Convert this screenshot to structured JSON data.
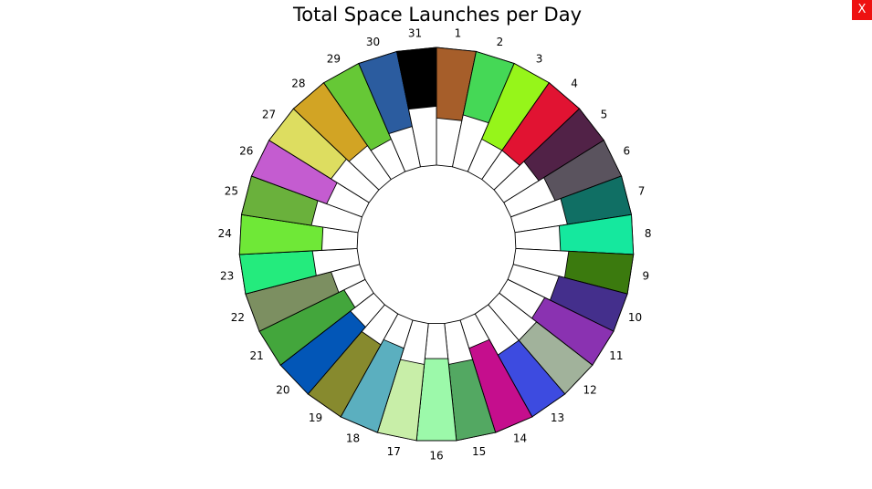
{
  "chart_data": {
    "type": "radial-bar",
    "title": "Total Space Launches per Day",
    "categories": [
      "1",
      "2",
      "3",
      "4",
      "5",
      "6",
      "7",
      "8",
      "9",
      "10",
      "11",
      "12",
      "13",
      "14",
      "15",
      "16",
      "17",
      "18",
      "19",
      "20",
      "21",
      "22",
      "23",
      "24",
      "25",
      "26",
      "27",
      "28",
      "29",
      "30",
      "31"
    ],
    "values": [
      0.6,
      0.55,
      0.7,
      0.7,
      0.65,
      0.6,
      0.55,
      0.62,
      0.55,
      0.6,
      0.65,
      0.6,
      0.6,
      0.75,
      0.65,
      0.7,
      0.65,
      0.75,
      0.7,
      0.75,
      0.8,
      0.75,
      0.62,
      0.7,
      0.6,
      0.68,
      0.62,
      0.65,
      0.7,
      0.65,
      0.5
    ],
    "colors": [
      "#A65E2A",
      "#45D856",
      "#96F51A",
      "#E11332",
      "#512247",
      "#5A535E",
      "#106F64",
      "#15E89E",
      "#3B7A0E",
      "#442F8C",
      "#8A32B1",
      "#A1B29B",
      "#3D4BE0",
      "#C50E8D",
      "#53A862",
      "#9CF9AA",
      "#C8EEA8",
      "#5BAFBF",
      "#878A2E",
      "#0256B7",
      "#43A63C",
      "#7C8F61",
      "#24EB7D",
      "#6FE837",
      "#6AB13C",
      "#C45CD0",
      "#DDDD60",
      "#D2A424",
      "#66C836",
      "#2B5C9F",
      "#000000"
    ],
    "ylim": [
      0,
      1
    ],
    "legend": "none"
  },
  "ui": {
    "close_label": "X"
  }
}
